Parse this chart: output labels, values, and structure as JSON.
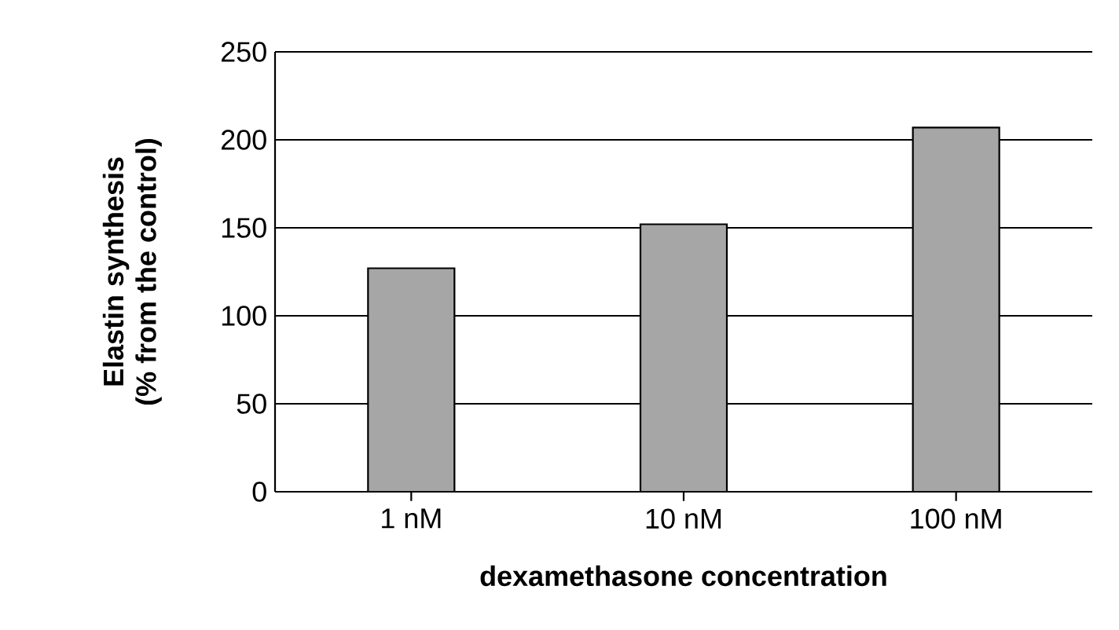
{
  "chart_data": {
    "type": "bar",
    "xlabel": "dexamethasone concentration",
    "ylabel": "Elastin synthesis\n(% from the control)",
    "categories": [
      "1 nM",
      "10 nM",
      "100 nM"
    ],
    "values": [
      127,
      152,
      207
    ],
    "color": "#a6a6a6",
    "ylim": [
      0,
      250
    ],
    "yticks": [
      0,
      50,
      100,
      150,
      200,
      250
    ],
    "grid": "y"
  }
}
